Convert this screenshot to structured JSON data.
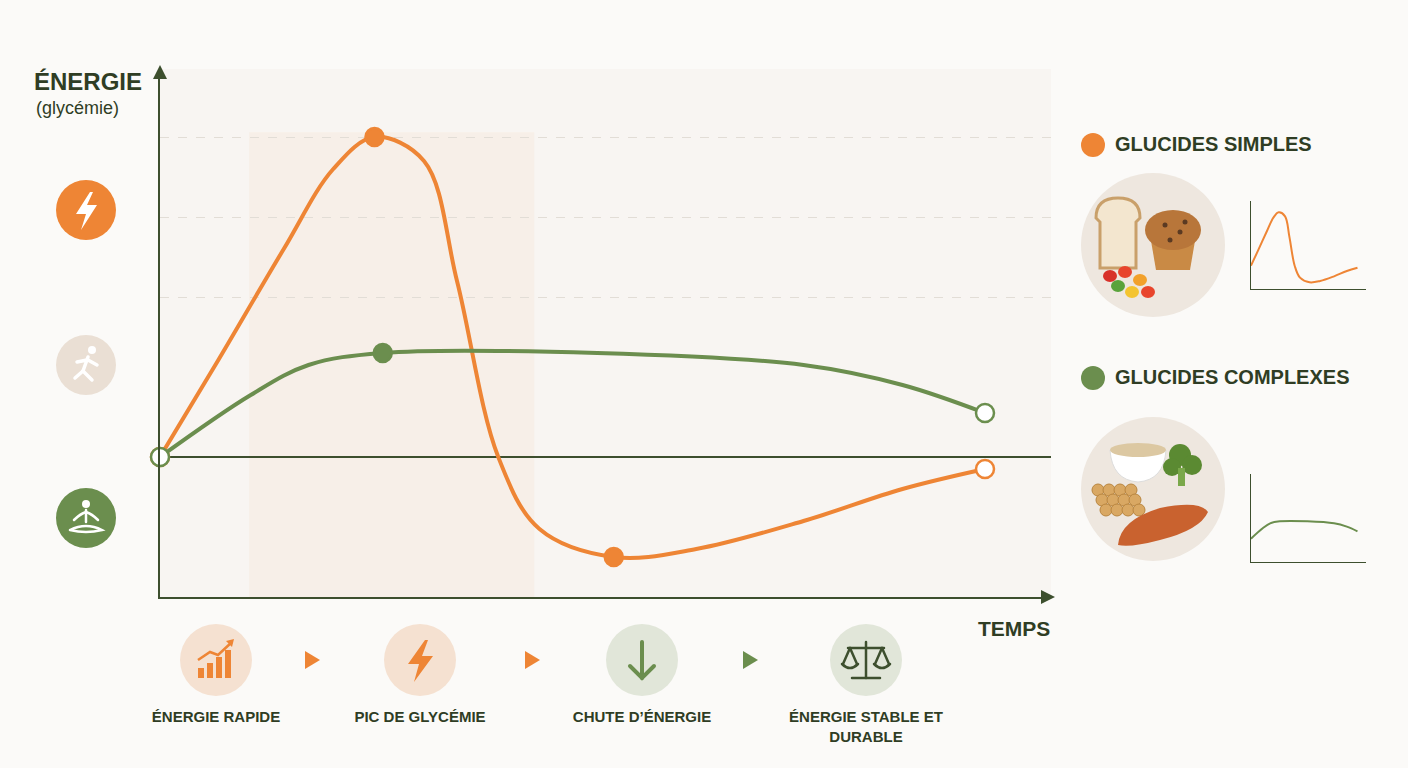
{
  "chart_data": {
    "type": "line",
    "xlabel": "TEMPS",
    "ylabel": "ÉNERGIE (glycémie)",
    "xlim": [
      0,
      10.8
    ],
    "ylim": [
      -3.5,
      9.7
    ],
    "yticks": [
      0,
      4,
      6,
      8
    ],
    "grid": true,
    "tick_labels": false,
    "legend": "right",
    "series": [
      {
        "name": "GLUCIDES SIMPLES",
        "color": "#ee8535",
        "line_style": "solid",
        "marker": "circle",
        "x": [
          0,
          0.7,
          1.5,
          2.1,
          2.6,
          3.2,
          3.6,
          4.1,
          4.6,
          5.5,
          6.5,
          7.8,
          9,
          10
        ],
        "values": [
          0,
          2.4,
          5.2,
          7.2,
          8.0,
          7.4,
          4.4,
          0,
          -1.8,
          -2.5,
          -2.3,
          -1.6,
          -0.8,
          -0.3
        ]
      },
      {
        "name": "GLUCIDES COMPLEXES",
        "color": "#6b8e4e",
        "line_style": "solid",
        "marker": "circle",
        "x": [
          0,
          1.1,
          1.8,
          2.7,
          5.3,
          7.8,
          9,
          10
        ],
        "values": [
          0,
          1.55,
          2.3,
          2.6,
          2.6,
          2.3,
          1.8,
          1.1
        ]
      }
    ]
  },
  "flow_steps": [
    "ÉNERGIE RAPIDE",
    "PIC DE GLYCÉMIE",
    "CHUTE D’ÉNERGIE",
    "ÉNERGIE STABLE ET DURABLE"
  ]
}
